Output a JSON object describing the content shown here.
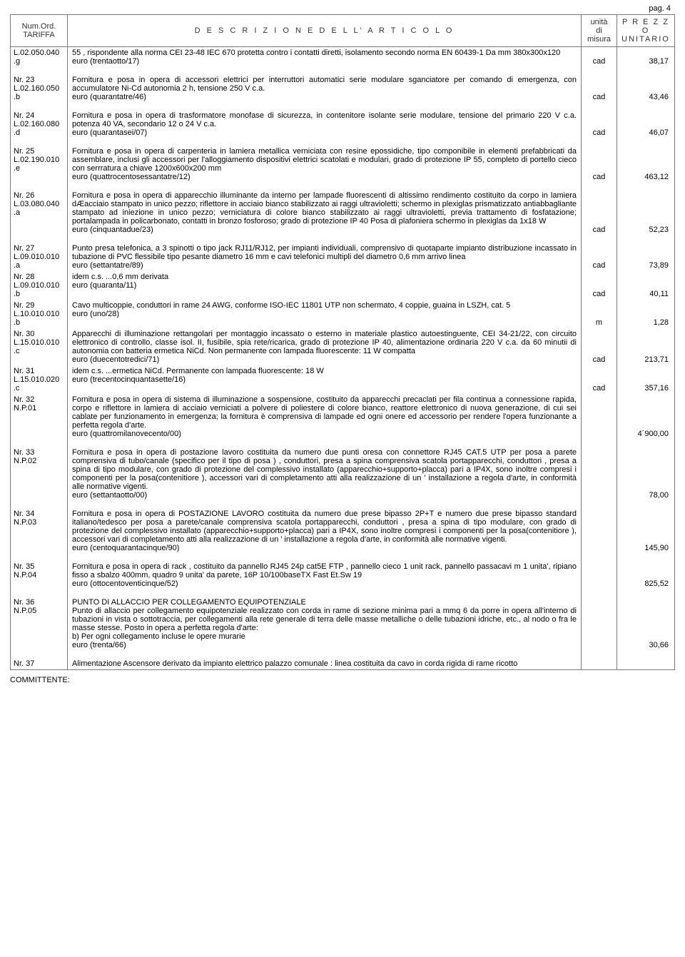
{
  "page_label": "pag. 4",
  "header": {
    "tariffa": "Num.Ord.\nTARIFFA",
    "descrizione": "D E S C R I Z I O N E   D E L L' A R T I C O L O",
    "unita": "unità\ndi\nmisura",
    "prezzo": "P R E Z Z O\nUNITARIO"
  },
  "footer": "COMMITTENTE:",
  "rows": [
    {
      "code": "L.02.050.040\n.g",
      "desc": "55 , rispondente alla norma CEI 23-48 IEC 670 protetta contro i contatti diretti, isolamento secondo norma EN 60439-1 Da mm 380x300x120",
      "euro": "euro (trentaotto/17)",
      "um": "cad",
      "price": "38,17"
    },
    {
      "code": "Nr. 23\nL.02.160.050\n.b",
      "desc": "Fornitura e posa in opera di accessori elettrici per interruttori automatici serie modulare sganciatore per comando di emergenza, con accumulatore Ni-Cd autonomia 2 h, tensione 250 V c.a.",
      "euro": "euro (quarantatre/46)",
      "um": "cad",
      "price": "43,46"
    },
    {
      "code": "Nr. 24\nL.02.160.080\n.d",
      "desc": "Fornitura e posa in opera di trasformatore monofase di sicurezza, in contenitore isolante serie modulare, tensione del primario 220 V c.a. potenza 40 VA, secondario 12 o 24 V c.a.",
      "euro": "euro (quarantasei/07)",
      "um": "cad",
      "price": "46,07"
    },
    {
      "code": "Nr. 25\nL.02.190.010\n.e",
      "desc": "Fornitura e posa in opera di carpenteria in lamiera metallica verniciata con resine epossidiche, tipo componibile in elementi prefabbricati da assemblare, inclusi gli accessori per l'alloggiamento dispositivi elettrici scatolati e modulari, grado di protezione IP 55, completo di portello cieco con serrratura a chiave 1200x600x200 mm",
      "euro": "euro (quattrocentosessantatre/12)",
      "um": "cad",
      "price": "463,12"
    },
    {
      "code": "Nr. 26\nL.03.080.040\n.a",
      "desc": "Fornitura e posa in opera di apparecchio illuminante da interno per lampade fluorescenti di altissimo rendimento costituito da corpo in lamiera dÆacciaio stampato in unico pezzo; riflettore in acciaio bianco stabilizzato ai raggi ultravioletti; schermo in plexiglas prismatizzato antiabbagliante stampato ad iniezione in unico pezzo; verniciatura di colore bianco stabilizzato ai raggi ultravioletti, previa trattamento di fosfatazione; portalampada in policarbonato, contatti in bronzo fosforoso; grado di protezione IP 40 Posa di plafoniera schermo in plexiglas da 1x18 W",
      "euro": "euro (cinquantadue/23)",
      "um": "cad",
      "price": "52,23"
    },
    {
      "code": "Nr. 27\nL.09.010.010\n.a",
      "desc": "Punto presa telefonica, a 3 spinotti o tipo jack RJ11/RJ12, per impianti individuali, comprensivo di quotaparte impianto distribuzione incassato in tubazione di PVC flessibile tipo pesante diametro 16 mm e cavi telefonici multipli del diametro 0,6 mm arrivo linea",
      "euro": "euro (settantatre/89)",
      "um": "cad",
      "price": "73,89"
    },
    {
      "code": "Nr. 28\nL.09.010.010\n.b",
      "desc": "idem c.s. ...0,6 mm derivata",
      "euro": "euro (quaranta/11)",
      "um": "cad",
      "price": "40,11",
      "tight": true
    },
    {
      "code": "Nr. 29\nL.10.010.010\n.b",
      "desc": "Cavo multicoppie, conduttori in rame 24 AWG, conforme ISO-IEC 11801 UTP non schermato, 4 coppie, guaina in LSZH, cat. 5",
      "euro": "euro (uno/28)",
      "um": "m",
      "price": "1,28",
      "tight": true
    },
    {
      "code": "Nr. 30\nL.15.010.010\n.c",
      "desc": "Apparecchi di illuminazione rettangolari per montaggio incassato o esterno in materiale plastico autoestinguente, CEI 34-21/22, con circuito elettronico di controllo, classe isol. II, fusibile, spia rete/ricarica, grado di protezione IP 40, alimentazione ordinaria 220 V c.a. da 60 minutii di autonomia con batteria ermetica NiCd. Non permanente con lampada fluorescente: 11 W compatta",
      "euro": "euro (duecentotredici/71)",
      "um": "cad",
      "price": "213,71",
      "tight_top": true
    },
    {
      "code": "Nr. 31\nL.15.010.020\n.c",
      "desc": "idem c.s. ...ermetica NiCd. Permanente con lampada fluorescente: 18 W",
      "euro": "euro (trecentocinquantasette/16)",
      "um": "cad",
      "price": "357,16",
      "tight": true
    },
    {
      "code": "Nr. 32\nN.P.01",
      "desc": "Fornitura e posa in opera di sistema di illuminazione a sospensione, costituito da apparecchi precaclati per fila continua a connessione rapida, corpo e riflettore in lamiera di acciaio verniciati a polvere di poliestere di colore bianco, reattore elettronico di nuova generazione, di cui sei cablate per funzionamento in emergenza; la fornitura è comprensiva di  lampade  ed ogni onere ed accessorio per rendere l'opera funzionante a perfetta regola d'arte.",
      "euro": "euro (quattromilanovecento/00)",
      "um": "",
      "price": "4´900,00",
      "tight_top": true
    },
    {
      "code": "Nr. 33\nN.P.02",
      "desc": "Fornitura e posa in opera di postazione lavoro costituita da numero due punti oresa con connettore RJ45 CAT.5 UTP per posa a parete comprensiva di tubo/canale (specifico per il tipo di posa ) , conduttori, presa a spina comprensiva scatola portapparecchi, conduttori , presa a spina di tipo modulare, con grado di protezione del complessivo installato (apparecchio+supporto+placca) pari a IP4X, sono inoltre compresi i componenti per la posa(contenitiore ), accessori vari di completamento atti alla realizzazione di un ' installazione a regola d'arte, in conformità alle normative vigenti.",
      "euro": "euro (settantaotto/00)",
      "um": "",
      "price": "78,00"
    },
    {
      "code": "Nr. 34\nN.P.03",
      "desc": "Fornitura e posa in opera di POSTAZIONE LAVORO costituita da numero due  prese bipasso 2P+T e numero due prese bipasso standard italiano/tedesco per posa a parete/canale  comprensiva scatola portapparecchi, conduttori , presa a spina di tipo modulare, con grado di protezione del complessivo installato (apparecchio+supporto+placca) pari a IP4X, sono inoltre compresi i componenti per la posa(contenitiore ), accessori vari di completamento atti alla realizzazione di un ' installazione a regola d'arte, in conformità alle normative vigenti.",
      "euro": "euro (centoquarantacinque/90)",
      "um": "",
      "price": "145,90"
    },
    {
      "code": "Nr. 35\nN.P.04",
      "desc": "Fornitura e posa in opera di  rack , costituito da pannello RJ45 24p cat5E FTP , pannello cieco 1 unit rack, pannello passacavi m 1 unita', ripiano fisso a sbalzo 400mm, quadro 9 unita' da parete, 16P 10/100baseTX Fast Et.Sw 19",
      "euro": "euro (ottocentoventicinque/52)",
      "um": "",
      "price": "825,52"
    },
    {
      "code": "Nr. 36\nN.P.05",
      "desc": "PUNTO DI ALLACCIO PER COLLEGAMENTO EQUIPOTENZIALE\nPunto di allaccio per collegamento equipotenziale realizzato con corda in rame di sezione minima pari a mmq 6 da porre in opera all'interno di tubazioni in vista o sottotraccia, per collegamenti alla rete generale di terra delle masse metalliche o delle tubazioni idriche, etc., al nodo o fra le masse stesse. Posto in opera a perfetta regola d'arte:\nb) Per ogni collegamento incluse le opere murarie",
      "euro": "euro (trenta/66)",
      "um": "",
      "price": "30,66"
    },
    {
      "code": "Nr. 37",
      "desc": "Alimentazione Ascensore derivato da  impianto elettrico palazzo comunale :  linea costituita da cavo in corda rigida di rame ricotto",
      "euro": "",
      "um": "",
      "price": ""
    }
  ]
}
